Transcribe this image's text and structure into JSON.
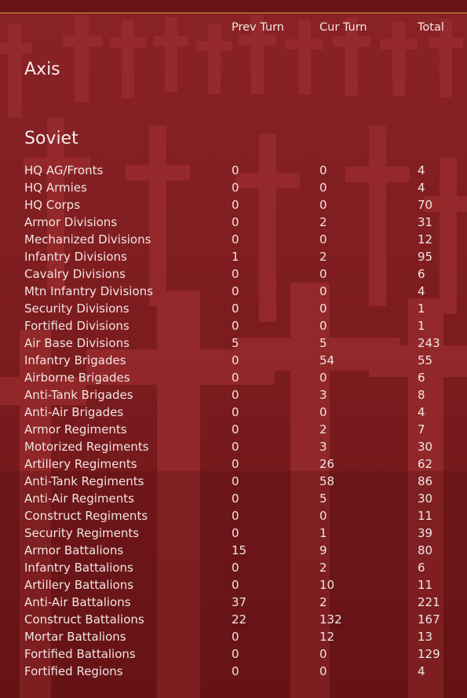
{
  "columns": {
    "prev_turn": "Prev Turn",
    "cur_turn": "Cur Turn",
    "total": "Total"
  },
  "sections": {
    "axis": "Axis",
    "soviet": "Soviet"
  },
  "soviet_rows": [
    {
      "name": "HQ AG/Fronts",
      "prev": "0",
      "cur": "0",
      "total": "4"
    },
    {
      "name": "HQ Armies",
      "prev": "0",
      "cur": "0",
      "total": "4"
    },
    {
      "name": "HQ Corps",
      "prev": "0",
      "cur": "0",
      "total": "70"
    },
    {
      "name": "Armor Divisions",
      "prev": "0",
      "cur": "2",
      "total": "31"
    },
    {
      "name": "Mechanized Divisions",
      "prev": "0",
      "cur": "0",
      "total": "12"
    },
    {
      "name": "Infantry Divisions",
      "prev": "1",
      "cur": "2",
      "total": "95"
    },
    {
      "name": "Cavalry Divisions",
      "prev": "0",
      "cur": "0",
      "total": "6"
    },
    {
      "name": "Mtn Infantry Divisions",
      "prev": "0",
      "cur": "0",
      "total": "4"
    },
    {
      "name": "Security Divisions",
      "prev": "0",
      "cur": "0",
      "total": "1"
    },
    {
      "name": "Fortified Divisions",
      "prev": "0",
      "cur": "0",
      "total": "1"
    },
    {
      "name": "Air Base Divisions",
      "prev": "5",
      "cur": "5",
      "total": "243"
    },
    {
      "name": "Infantry Brigades",
      "prev": "0",
      "cur": "54",
      "total": "55"
    },
    {
      "name": "Airborne Brigades",
      "prev": "0",
      "cur": "0",
      "total": "6"
    },
    {
      "name": "Anti-Tank Brigades",
      "prev": "0",
      "cur": "3",
      "total": "8"
    },
    {
      "name": "Anti-Air Brigades",
      "prev": "0",
      "cur": "0",
      "total": "4"
    },
    {
      "name": "Armor Regiments",
      "prev": "0",
      "cur": "2",
      "total": "7"
    },
    {
      "name": "Motorized Regiments",
      "prev": "0",
      "cur": "3",
      "total": "30"
    },
    {
      "name": "Artillery Regiments",
      "prev": "0",
      "cur": "26",
      "total": "62"
    },
    {
      "name": "Anti-Tank Regiments",
      "prev": "0",
      "cur": "58",
      "total": "86"
    },
    {
      "name": "Anti-Air Regiments",
      "prev": "0",
      "cur": "5",
      "total": "30"
    },
    {
      "name": "Construct Regiments",
      "prev": "0",
      "cur": "0",
      "total": "11"
    },
    {
      "name": "Security Regiments",
      "prev": "0",
      "cur": "1",
      "total": "39"
    },
    {
      "name": "Armor Battalions",
      "prev": "15",
      "cur": "9",
      "total": "80"
    },
    {
      "name": "Infantry Battalions",
      "prev": "0",
      "cur": "2",
      "total": "6"
    },
    {
      "name": "Artillery Battalions",
      "prev": "0",
      "cur": "10",
      "total": "11"
    },
    {
      "name": "Anti-Air Battalions",
      "prev": "37",
      "cur": "2",
      "total": "221"
    },
    {
      "name": "Construct Battalions",
      "prev": "22",
      "cur": "132",
      "total": "167"
    },
    {
      "name": "Mortar Battalions",
      "prev": "0",
      "cur": "12",
      "total": "13"
    },
    {
      "name": "Fortified Battalions",
      "prev": "0",
      "cur": "0",
      "total": "129"
    },
    {
      "name": "Fortified Regions",
      "prev": "0",
      "cur": "0",
      "total": "4"
    }
  ],
  "colors": {
    "background": "#7d1b1e",
    "cross_motif": "#962a2b",
    "top_rule": "#c9a34a",
    "text": "#f0e4e2"
  }
}
